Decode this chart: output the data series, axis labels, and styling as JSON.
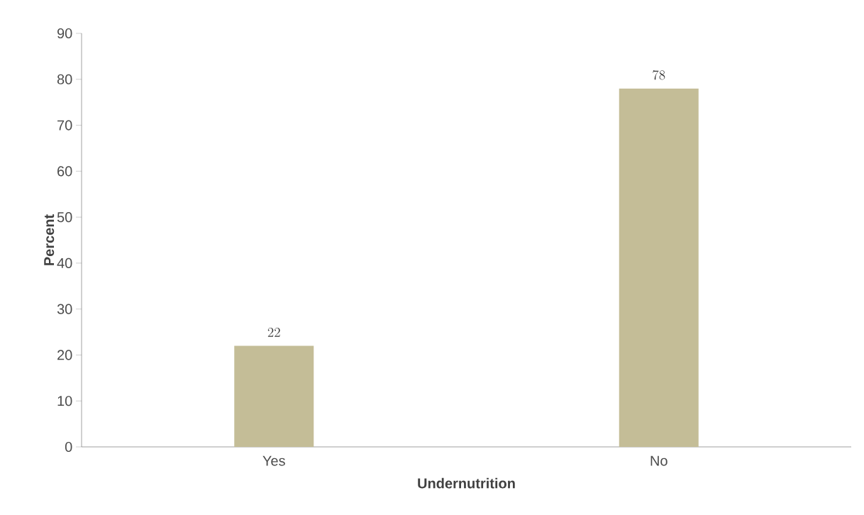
{
  "chart_data": {
    "type": "bar",
    "xlabel": "Undernutrition",
    "ylabel": "Percent",
    "categories": [
      "Yes",
      "No"
    ],
    "values": [
      22,
      78
    ],
    "color": "#c4bd97",
    "ylim": [
      0,
      90
    ],
    "yticks": [
      0,
      10,
      20,
      30,
      40,
      50,
      60,
      70,
      80,
      90
    ],
    "data_labels": true
  }
}
